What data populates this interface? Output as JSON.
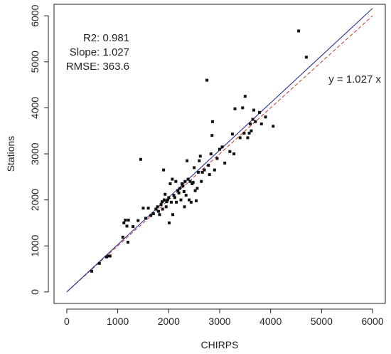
{
  "chart_data": {
    "type": "scatter",
    "title": "",
    "xlabel": "CHIRPS",
    "ylabel": "Stations",
    "xlim": [
      -250,
      6250
    ],
    "ylim": [
      -250,
      6250
    ],
    "xticks": [
      "0",
      "1000",
      "2000",
      "3000",
      "4000",
      "5000",
      "6000"
    ],
    "yticks": [
      "0",
      "1000",
      "2000",
      "3000",
      "4000",
      "5000",
      "6000"
    ],
    "grid": false,
    "legend": "none",
    "stats": {
      "r2": "R2: 0.981",
      "slope": "Slope: 1.027",
      "rmse": "RMSE: 363.6"
    },
    "equation": "y = 1.027 x",
    "fit_line": {
      "slope": 1.027,
      "color": "#1a1a8c",
      "style": "solid"
    },
    "one_to_one_line": {
      "slope": 1.0,
      "color": "#c0392b",
      "style": "dashed"
    },
    "point_color": "#111111",
    "points": [
      [
        490,
        450
      ],
      [
        640,
        620
      ],
      [
        780,
        760
      ],
      [
        820,
        780
      ],
      [
        850,
        780
      ],
      [
        1100,
        1190
      ],
      [
        1120,
        1500
      ],
      [
        1150,
        1560
      ],
      [
        1180,
        1430
      ],
      [
        1200,
        1080
      ],
      [
        1210,
        1560
      ],
      [
        1300,
        1420
      ],
      [
        1400,
        1550
      ],
      [
        1450,
        2880
      ],
      [
        1500,
        1820
      ],
      [
        1550,
        1600
      ],
      [
        1600,
        1820
      ],
      [
        1650,
        1660
      ],
      [
        1700,
        1700
      ],
      [
        1750,
        1800
      ],
      [
        1780,
        1850
      ],
      [
        1800,
        1750
      ],
      [
        1820,
        1680
      ],
      [
        1850,
        1900
      ],
      [
        1870,
        1960
      ],
      [
        1880,
        1800
      ],
      [
        1900,
        2650
      ],
      [
        1910,
        2000
      ],
      [
        1930,
        2120
      ],
      [
        1950,
        1850
      ],
      [
        1960,
        1960
      ],
      [
        1980,
        2000
      ],
      [
        2000,
        2050
      ],
      [
        2010,
        1500
      ],
      [
        2030,
        2350
      ],
      [
        2050,
        1950
      ],
      [
        2070,
        2450
      ],
      [
        2080,
        1680
      ],
      [
        2100,
        2100
      ],
      [
        2120,
        2050
      ],
      [
        2140,
        2400
      ],
      [
        2150,
        1950
      ],
      [
        2180,
        2200
      ],
      [
        2200,
        2150
      ],
      [
        2220,
        2250
      ],
      [
        2240,
        2000
      ],
      [
        2260,
        2350
      ],
      [
        2280,
        2300
      ],
      [
        2300,
        2180
      ],
      [
        2310,
        1850
      ],
      [
        2320,
        2400
      ],
      [
        2340,
        2100
      ],
      [
        2360,
        2850
      ],
      [
        2380,
        2450
      ],
      [
        2400,
        2000
      ],
      [
        2420,
        2400
      ],
      [
        2440,
        1950
      ],
      [
        2460,
        2350
      ],
      [
        2480,
        2380
      ],
      [
        2500,
        2700
      ],
      [
        2520,
        2200
      ],
      [
        2540,
        1980
      ],
      [
        2560,
        2250
      ],
      [
        2580,
        2600
      ],
      [
        2600,
        2850
      ],
      [
        2620,
        2950
      ],
      [
        2640,
        2400
      ],
      [
        2660,
        2600
      ],
      [
        2700,
        2650
      ],
      [
        2750,
        4600
      ],
      [
        2780,
        2750
      ],
      [
        2800,
        2550
      ],
      [
        2830,
        3000
      ],
      [
        2850,
        3400
      ],
      [
        2860,
        3700
      ],
      [
        2900,
        2650
      ],
      [
        2950,
        2900
      ],
      [
        3000,
        3100
      ],
      [
        3050,
        3150
      ],
      [
        3100,
        2800
      ],
      [
        3200,
        3050
      ],
      [
        3250,
        3430
      ],
      [
        3280,
        3000
      ],
      [
        3300,
        3980
      ],
      [
        3400,
        3350
      ],
      [
        3450,
        4000
      ],
      [
        3480,
        3450
      ],
      [
        3500,
        4250
      ],
      [
        3550,
        3350
      ],
      [
        3580,
        3450
      ],
      [
        3600,
        3650
      ],
      [
        3620,
        3500
      ],
      [
        3650,
        3750
      ],
      [
        3670,
        3950
      ],
      [
        3700,
        3700
      ],
      [
        3780,
        3900
      ],
      [
        3820,
        3650
      ],
      [
        3900,
        3800
      ],
      [
        4050,
        3600
      ],
      [
        4550,
        5670
      ],
      [
        4700,
        5100
      ]
    ]
  }
}
